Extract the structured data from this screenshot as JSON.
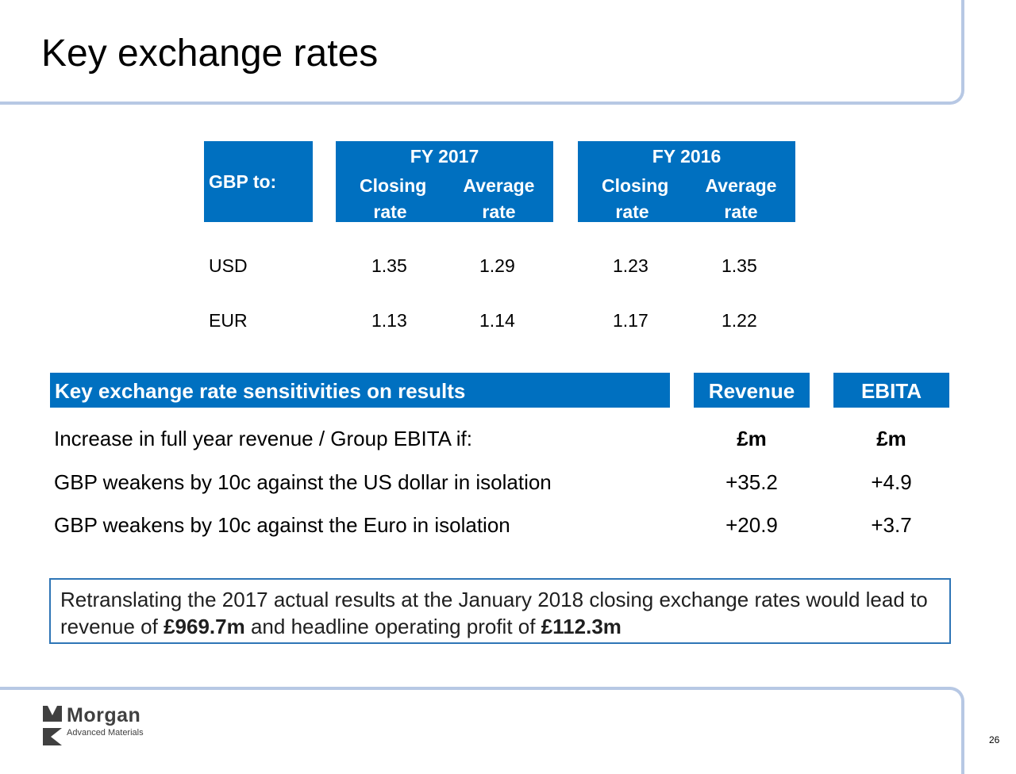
{
  "title": "Key exchange rates",
  "rates_table": {
    "row_header": "GBP to:",
    "periods": [
      {
        "label": "FY 2017",
        "closing": "Closing rate",
        "average": "Average rate"
      },
      {
        "label": "FY 2016",
        "closing": "Closing rate",
        "average": "Average rate"
      }
    ],
    "rows": [
      {
        "currency": "USD",
        "values": [
          "1.35",
          "1.29",
          "1.23",
          "1.35"
        ]
      },
      {
        "currency": "EUR",
        "values": [
          "1.13",
          "1.14",
          "1.17",
          "1.22"
        ]
      }
    ]
  },
  "sensitivities": {
    "header": "Key exchange rate sensitivities on results",
    "revenue_header": "Revenue",
    "ebita_header": "EBITA",
    "rows": [
      {
        "label": "Increase in full year revenue / Group EBITA if:",
        "revenue": "£m",
        "ebita": "£m"
      },
      {
        "label": "GBP weakens by 10c against the US dollar in isolation",
        "revenue": "+35.2",
        "ebita": "+4.9"
      },
      {
        "label": "GBP weakens by 10c against the Euro in isolation",
        "revenue": "+20.9",
        "ebita": "+3.7"
      }
    ]
  },
  "note": {
    "part1": "Retranslating the 2017 actual results at the January 2018 closing exchange rates would lead to revenue of ",
    "bold1": "£969.7m",
    "part2": " and headline operating profit of ",
    "bold2": "£112.3m"
  },
  "logo": {
    "name": "Morgan",
    "subtitle": "Advanced Materials"
  },
  "page_number": "26",
  "colors": {
    "header_blue": "#0070c0",
    "frame": "#b7c8e4",
    "note_border": "#2e75b6"
  }
}
